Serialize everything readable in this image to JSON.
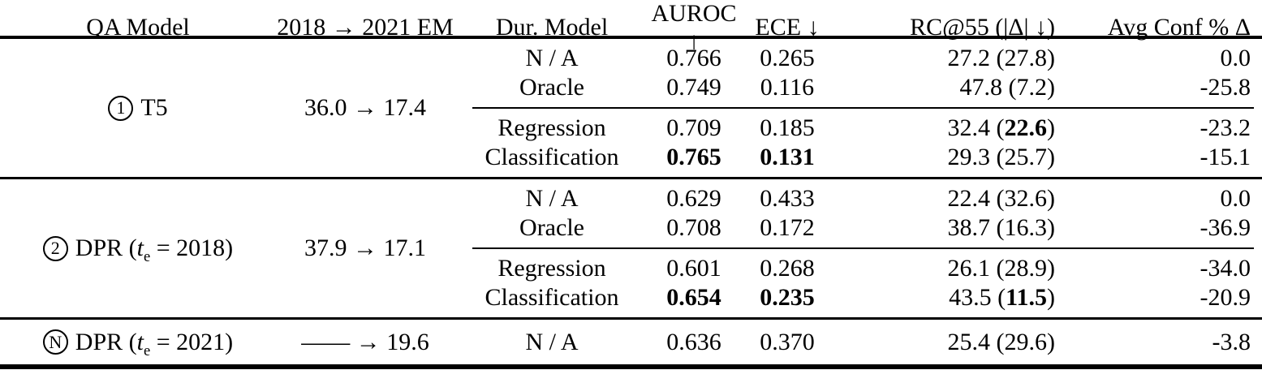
{
  "header": {
    "qa_model": "QA Model",
    "em": "2018 → 2021 EM",
    "dur_model": "Dur. Model",
    "auroc": "AUROC ↑",
    "ece": "ECE ↓",
    "rc": "RC@55 (|Δ| ↓)",
    "avg_conf": "Avg Conf % Δ"
  },
  "blocks": [
    {
      "model": {
        "badge": "1",
        "pre": "T5",
        "var": "",
        "sub": "",
        "post": ""
      },
      "em": "36.0 → 17.4",
      "top": [
        {
          "dur": "N / A",
          "auroc": "0.766",
          "ece": "0.265",
          "rc_pre": "27.2 (",
          "rc_mid": "27.8",
          "rc_post": ")",
          "avg": "0.0"
        },
        {
          "dur": "Oracle",
          "auroc": "0.749",
          "ece": "0.116",
          "rc_pre": "47.8 (",
          "rc_mid": "7.2",
          "rc_post": ")",
          "avg": "-25.8"
        }
      ],
      "bottom": [
        {
          "dur": "Regression",
          "auroc": "0.709",
          "ece": "0.185",
          "rc_pre": "32.4 (",
          "rc_mid": "22.6",
          "rc_post": ")",
          "avg": "-23.2"
        },
        {
          "dur": "Classification",
          "auroc": "0.765",
          "ece": "0.131",
          "rc_pre": "29.3 (",
          "rc_mid": "25.7",
          "rc_post": ")",
          "avg": "-15.1"
        }
      ]
    },
    {
      "model": {
        "badge": "2",
        "pre": "DPR (",
        "var": "t",
        "sub": "e",
        "post": " = 2018)"
      },
      "em": "37.9 → 17.1",
      "top": [
        {
          "dur": "N / A",
          "auroc": "0.629",
          "ece": "0.433",
          "rc_pre": "22.4 (",
          "rc_mid": "32.6",
          "rc_post": ")",
          "avg": "0.0"
        },
        {
          "dur": "Oracle",
          "auroc": "0.708",
          "ece": "0.172",
          "rc_pre": "38.7 (",
          "rc_mid": "16.3",
          "rc_post": ")",
          "avg": "-36.9"
        }
      ],
      "bottom": [
        {
          "dur": "Regression",
          "auroc": "0.601",
          "ece": "0.268",
          "rc_pre": "26.1 (",
          "rc_mid": "28.9",
          "rc_post": ")",
          "avg": "-34.0"
        },
        {
          "dur": "Classification",
          "auroc": "0.654",
          "ece": "0.235",
          "rc_pre": "43.5 (",
          "rc_mid": "11.5",
          "rc_post": ")",
          "avg": "-20.9"
        }
      ]
    }
  ],
  "final": {
    "model": {
      "badge": "N",
      "pre": "DPR (",
      "var": "t",
      "sub": "e",
      "post": " = 2021)"
    },
    "em": "—— → 19.6",
    "dur": "N / A",
    "auroc": "0.636",
    "ece": "0.370",
    "rc_pre": "25.4 (",
    "rc_mid": "29.6",
    "rc_post": ")",
    "avg": "-3.8"
  },
  "colors": {
    "text": "#000000",
    "rule": "#000000",
    "background": "#ffffff"
  }
}
